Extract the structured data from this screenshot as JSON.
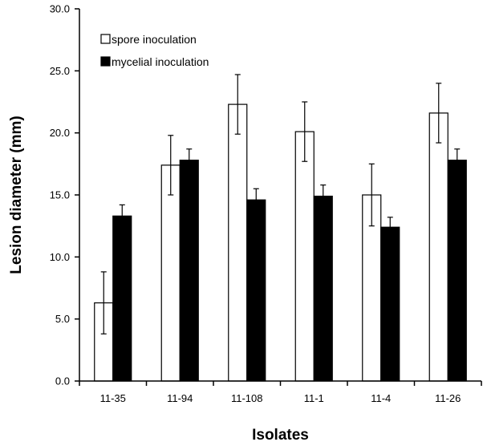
{
  "chart_data": {
    "type": "bar",
    "title": "",
    "xlabel": "Isolates",
    "ylabel": "Lesion diameter (mm)",
    "ylim": [
      0,
      30
    ],
    "yticks": [
      "0.0",
      "5.0",
      "10.0",
      "15.0",
      "20.0",
      "25.0",
      "30.0"
    ],
    "categories": [
      "11-35",
      "11-94",
      "11-108",
      "11-1",
      "11-4",
      "11-26"
    ],
    "series": [
      {
        "name": "spore inoculation",
        "color": "#ffffff",
        "values": [
          6.3,
          17.4,
          22.3,
          20.1,
          15.0,
          21.6
        ],
        "errors": [
          2.5,
          2.4,
          2.4,
          2.4,
          2.5,
          2.4
        ]
      },
      {
        "name": "mycelial inoculation",
        "color": "#000000",
        "values": [
          13.3,
          17.8,
          14.6,
          14.9,
          12.4,
          17.8
        ],
        "errors": [
          0.9,
          0.9,
          0.9,
          0.9,
          0.8,
          0.9
        ]
      }
    ],
    "legend_position": "top-left",
    "grid": false
  }
}
